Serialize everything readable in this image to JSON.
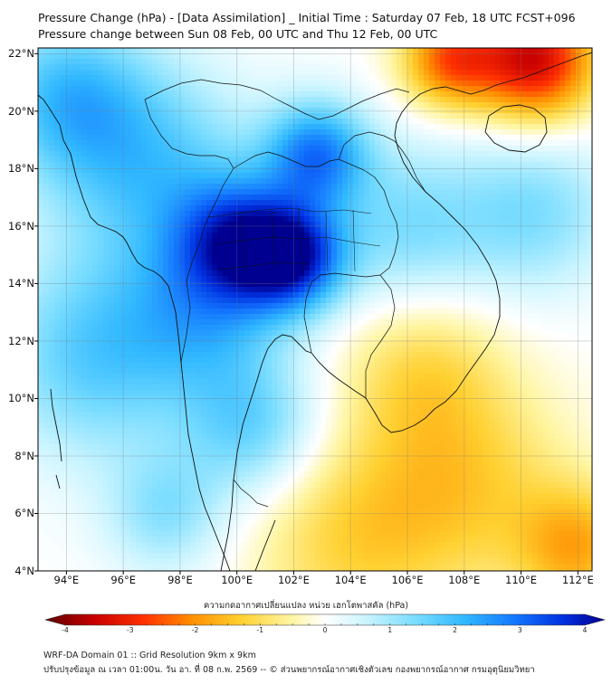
{
  "title": "Pressure Change (hPa) - [Data Assimilation] _ Initial Time : Saturday 07 Feb, 18 UTC FCST+096",
  "subtitle": "Pressure change between Sun 08 Feb, 00 UTC and Thu 12 Feb, 00 UTC",
  "lat_labels": [
    "22°N",
    "20°N",
    "18°N",
    "16°N",
    "14°N",
    "12°N",
    "10°N",
    "8°N",
    "6°N",
    "4°N"
  ],
  "lat_values": [
    22,
    20,
    18,
    16,
    14,
    12,
    10,
    8,
    6,
    4
  ],
  "lon_labels": [
    "94°E",
    "96°E",
    "98°E",
    "100°E",
    "102°E",
    "104°E",
    "106°E",
    "108°E",
    "110°E",
    "112°E"
  ],
  "lon_values": [
    94,
    96,
    98,
    100,
    102,
    104,
    106,
    108,
    110,
    112
  ],
  "extent": {
    "lon_min": 93.0,
    "lon_max": 112.5,
    "lat_min": 4.0,
    "lat_max": 22.2
  },
  "colorbar": {
    "title": "ความกดอากาศเปลี่ยนแปลง หน่วย เฮกโตพาสคัล (hPa)",
    "min": -4,
    "max": 4,
    "ticks": [
      "-4",
      "-3",
      "-2",
      "-1",
      "0",
      "1",
      "2",
      "3",
      "4"
    ],
    "tick_values": [
      -4,
      -3,
      -2,
      -1,
      0,
      1,
      2,
      3,
      4
    ],
    "stops": [
      {
        "v": -4.0,
        "c": "#5a0000"
      },
      {
        "v": -3.3,
        "c": "#c80000"
      },
      {
        "v": -2.6,
        "c": "#ff3000"
      },
      {
        "v": -1.9,
        "c": "#ff9000"
      },
      {
        "v": -1.2,
        "c": "#ffd030"
      },
      {
        "v": -0.5,
        "c": "#fff5a0"
      },
      {
        "v": 0.0,
        "c": "#ffffff"
      },
      {
        "v": 0.6,
        "c": "#c8f4ff"
      },
      {
        "v": 1.3,
        "c": "#78dcff"
      },
      {
        "v": 2.0,
        "c": "#30b8ff"
      },
      {
        "v": 2.7,
        "c": "#1478ff"
      },
      {
        "v": 3.4,
        "c": "#0030e0"
      },
      {
        "v": 4.0,
        "c": "#000090"
      }
    ]
  },
  "field_blobs": [
    {
      "lon": 102.0,
      "lat": 14.9,
      "value": 3.2,
      "spread": 1.3
    },
    {
      "lon": 100.0,
      "lat": 15.5,
      "value": 2.6,
      "spread": 1.5
    },
    {
      "lon": 102.8,
      "lat": 18.5,
      "value": 2.5,
      "spread": 1.3
    },
    {
      "lon": 99.0,
      "lat": 13.0,
      "value": 1.5,
      "spread": 2.0
    },
    {
      "lon": 97.0,
      "lat": 18.0,
      "value": 1.6,
      "spread": 2.5
    },
    {
      "lon": 95.0,
      "lat": 11.5,
      "value": 1.6,
      "spread": 2.5
    },
    {
      "lon": 94.0,
      "lat": 20.5,
      "value": 1.7,
      "spread": 2.0
    },
    {
      "lon": 106.0,
      "lat": 16.0,
      "value": 1.2,
      "spread": 2.0
    },
    {
      "lon": 100.5,
      "lat": 9.0,
      "value": 1.4,
      "spread": 1.7
    },
    {
      "lon": 97.5,
      "lat": 6.0,
      "value": 1.1,
      "spread": 1.5
    },
    {
      "lon": 110.5,
      "lat": 16.5,
      "value": 1.2,
      "spread": 2.0
    },
    {
      "lon": 110.5,
      "lat": 21.8,
      "value": -3.2,
      "spread": 1.5
    },
    {
      "lon": 107.5,
      "lat": 21.8,
      "value": -2.2,
      "spread": 1.2
    },
    {
      "lon": 106.5,
      "lat": 11.0,
      "value": -0.9,
      "spread": 2.0
    },
    {
      "lon": 108.0,
      "lat": 7.0,
      "value": -1.1,
      "spread": 2.6
    },
    {
      "lon": 104.0,
      "lat": 5.0,
      "value": -1.0,
      "spread": 2.5
    },
    {
      "lon": 112.0,
      "lat": 4.8,
      "value": -1.5,
      "spread": 1.5
    }
  ],
  "footer": {
    "line1": "WRF-DA Domain 01 :: Grid Resolution 9km x 9km",
    "line2": "ปรับปรุงข้อมูล ณ เวลา 01:00น. วัน อา. ที่ 08 ก.พ. 2569 -- © ส่วนพยากรณ์อากาศเชิงตัวเลข กองพยากรณ์อากาศ กรมอุตุนิยมวิทยา"
  }
}
